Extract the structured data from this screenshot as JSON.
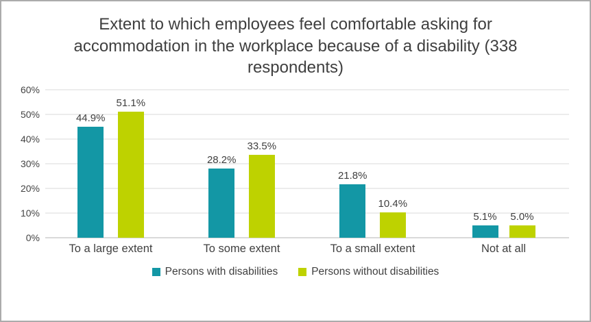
{
  "chart_data": {
    "type": "bar",
    "title": "Extent to which employees feel comfortable asking for accommodation in the workplace because of a disability (338 respondents)",
    "categories": [
      "To a large extent",
      "To some extent",
      "To a small extent",
      "Not at all"
    ],
    "series": [
      {
        "name": "Persons with disabilities",
        "color": "#1397a5",
        "values": [
          44.9,
          28.2,
          21.8,
          5.1
        ],
        "labels": [
          "44.9%",
          "28.2%",
          "21.8%",
          "5.1%"
        ]
      },
      {
        "name": "Persons without disabilities",
        "color": "#bed200",
        "values": [
          51.1,
          33.5,
          10.4,
          5.0
        ],
        "labels": [
          "51.1%",
          "33.5%",
          "10.4%",
          "5.0%"
        ]
      }
    ],
    "ylim": [
      0,
      60
    ],
    "ytick_step": 10,
    "ytick_labels": [
      "0%",
      "10%",
      "20%",
      "30%",
      "40%",
      "50%",
      "60%"
    ],
    "grid": true,
    "legend_position": "bottom"
  }
}
